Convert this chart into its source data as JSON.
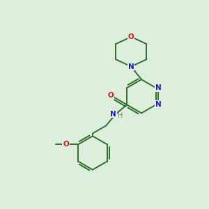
{
  "background_color": "#ddeedd",
  "bond_color": "#2d6e2d",
  "atom_colors": {
    "N": "#1a1acc",
    "O": "#cc1a1a",
    "C": "#2d6e2d",
    "H": "#808080"
  },
  "figsize": [
    3.0,
    3.0
  ],
  "dpi": 100
}
